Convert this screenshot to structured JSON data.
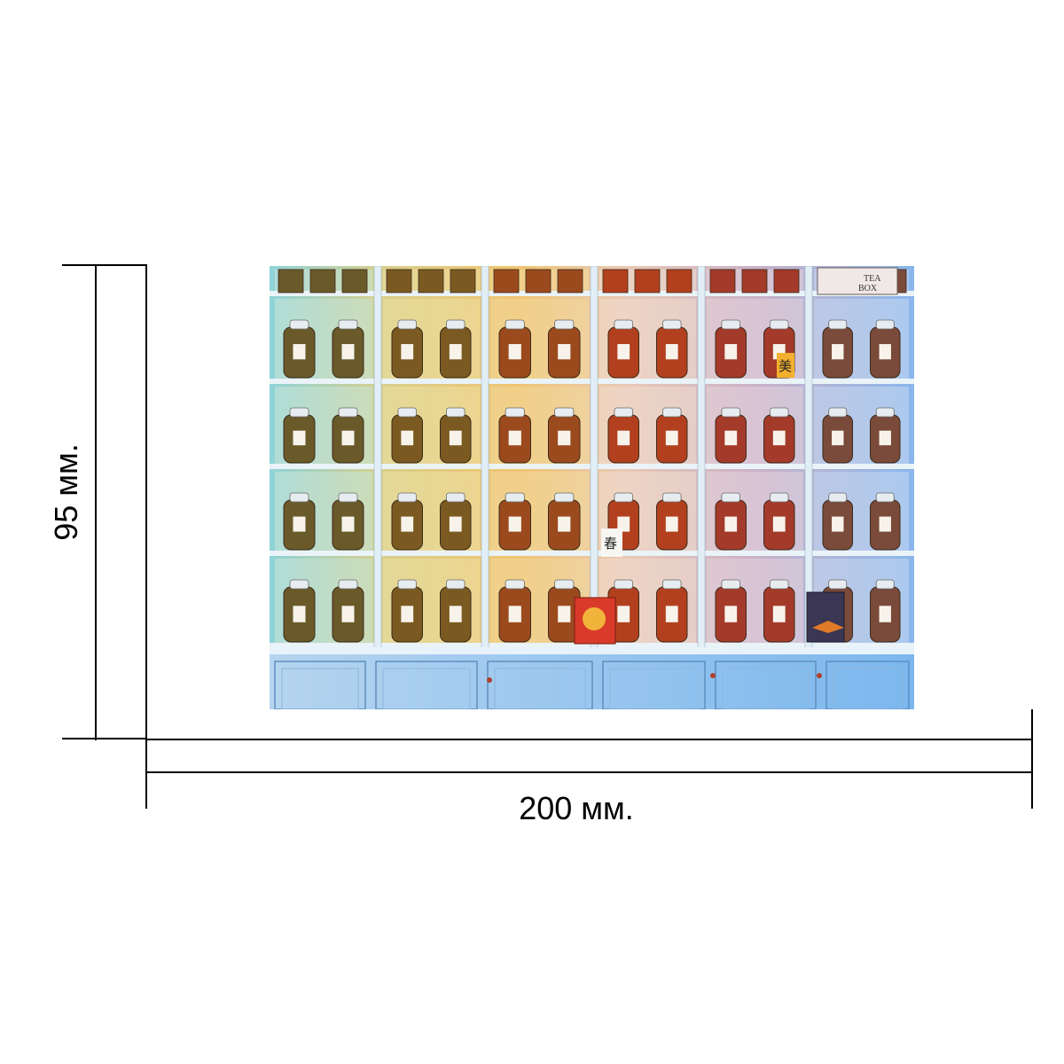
{
  "dimensions": {
    "height_label": "95 мм.",
    "width_label": "200 мм."
  },
  "artwork": {
    "subject": "tea-shop-shelves",
    "box_label_line1": "TEA",
    "box_label_line2": "BOX",
    "char_1": "美",
    "char_2": "春"
  }
}
